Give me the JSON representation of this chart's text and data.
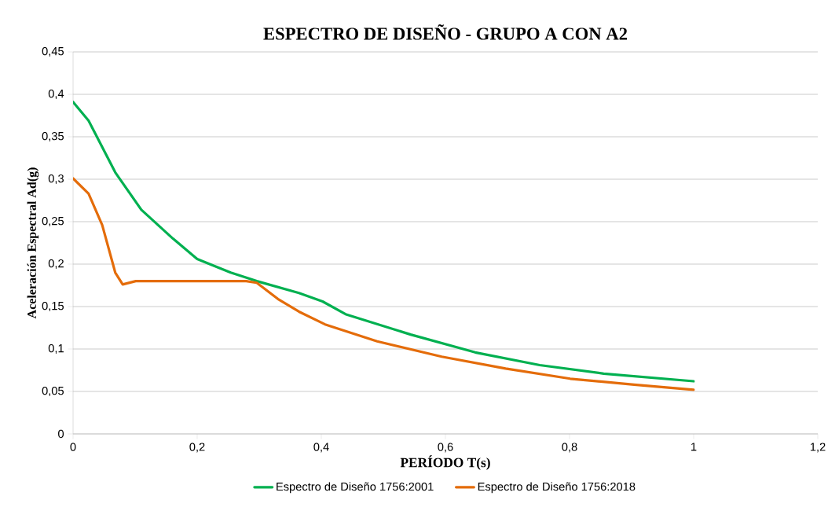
{
  "chart_data": {
    "type": "line",
    "title": "ESPECTRO DE DISEÑO - GRUPO A CON A2",
    "xlabel": "PERÍODO T(s)",
    "ylabel": "Aceleración Espectral Ad(g)",
    "series": [
      {
        "name": "Espectro de Diseño 1756:2001",
        "color": "#00b050",
        "x": [
          0,
          0.025,
          0.068,
          0.11,
          0.161,
          0.2,
          0.254,
          0.296,
          0.364,
          0.402,
          0.439,
          0.544,
          0.648,
          0.752,
          0.855,
          1.0
        ],
        "values": [
          0.391,
          0.369,
          0.308,
          0.264,
          0.23,
          0.206,
          0.19,
          0.18,
          0.166,
          0.156,
          0.141,
          0.117,
          0.096,
          0.081,
          0.071,
          0.062
        ]
      },
      {
        "name": "Espectro de Diseño 1756:2018",
        "color": "#e46c0a",
        "x": [
          0,
          0.025,
          0.047,
          0.068,
          0.08,
          0.101,
          0.152,
          0.279,
          0.296,
          0.33,
          0.364,
          0.406,
          0.49,
          0.594,
          0.697,
          0.801,
          0.904,
          1.0
        ],
        "values": [
          0.301,
          0.283,
          0.246,
          0.19,
          0.176,
          0.18,
          0.18,
          0.18,
          0.178,
          0.159,
          0.144,
          0.129,
          0.109,
          0.091,
          0.077,
          0.065,
          0.058,
          0.052
        ]
      }
    ],
    "xlim": [
      0,
      1.2
    ],
    "ylim": [
      0,
      0.45
    ],
    "xticks": [
      0,
      {
        "value": 0.2,
        "label": "0,2"
      },
      {
        "value": 0.4,
        "label": "0,4"
      },
      {
        "value": 0.6,
        "label": "0,6"
      },
      {
        "value": 0.8,
        "label": "0,8"
      },
      1,
      {
        "value": 1.2,
        "label": "1,2"
      }
    ],
    "yticks": [
      0,
      {
        "value": 0.05,
        "label": "0,05"
      },
      {
        "value": 0.1,
        "label": "0,1"
      },
      {
        "value": 0.15,
        "label": "0,15"
      },
      {
        "value": 0.2,
        "label": "0,2"
      },
      {
        "value": 0.25,
        "label": "0,25"
      },
      {
        "value": 0.3,
        "label": "0,3"
      },
      {
        "value": 0.35,
        "label": "0,35"
      },
      {
        "value": 0.4,
        "label": "0,4"
      },
      {
        "value": 0.45,
        "label": "0,45"
      }
    ],
    "grid": "y",
    "legend": "bottom",
    "marker": "none",
    "line_style": "solid"
  }
}
